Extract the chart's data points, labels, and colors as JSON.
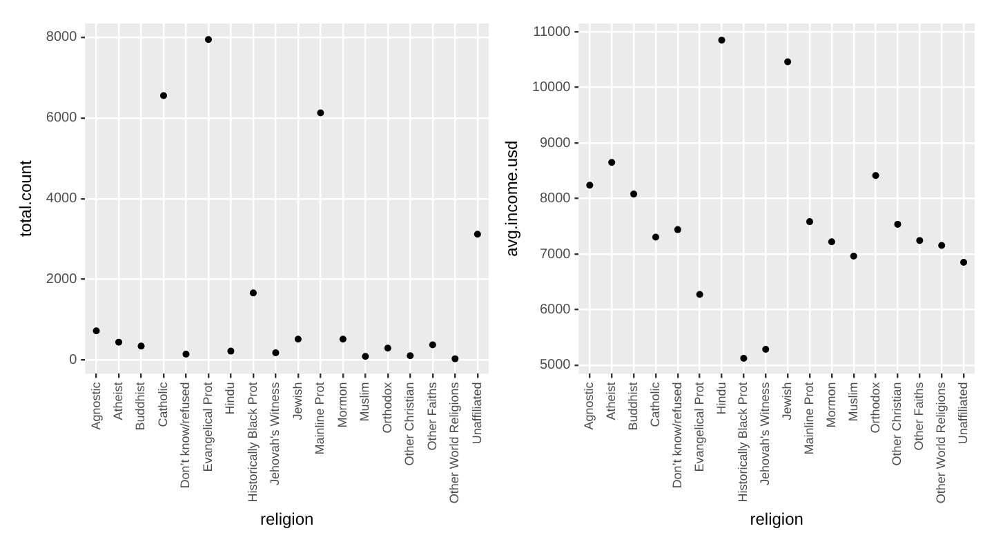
{
  "chart_data": [
    {
      "type": "scatter",
      "xlabel": "religion",
      "ylabel": "total.count",
      "categories": [
        "Agnostic",
        "Atheist",
        "Buddhist",
        "Catholic",
        "Don’t know/refused",
        "Evangelical Prot",
        "Hindu",
        "Historically Black Prot",
        "Jehovah's Witness",
        "Jewish",
        "Mainline Prot",
        "Mormon",
        "Muslim",
        "Orthodox",
        "Other Christian",
        "Other Faiths",
        "Other World Religions",
        "Unaffiliated"
      ],
      "series": [
        {
          "color": "#000000",
          "values": [
            724,
            444,
            346,
            6554,
            148,
            7942,
            222,
            1663,
            181,
            519,
            6124,
            519,
            91,
            296,
            107,
            379,
            33,
            3119
          ]
        }
      ],
      "ylim": [
        -340,
        8340
      ],
      "yticks": [
        0,
        2000,
        4000,
        6000,
        8000
      ],
      "grid": true,
      "marker": "circle"
    },
    {
      "type": "scatter",
      "xlabel": "religion",
      "ylabel": "avg.income.usd",
      "categories": [
        "Agnostic",
        "Atheist",
        "Buddhist",
        "Catholic",
        "Don’t know/refused",
        "Evangelical Prot",
        "Hindu",
        "Historically Black Prot",
        "Jehovah's Witness",
        "Jewish",
        "Mainline Prot",
        "Mormon",
        "Muslim",
        "Orthodox",
        "Other Christian",
        "Other Faiths",
        "Other World Religions",
        "Unaffiliated"
      ],
      "series": [
        {
          "color": "#000000",
          "values": [
            8240,
            8650,
            8080,
            7304,
            7440,
            6274,
            10850,
            5125,
            5286,
            10461,
            7583,
            7220,
            6964,
            8413,
            7536,
            7244,
            7155,
            6851
          ]
        }
      ],
      "ylim": [
        4845,
        11150
      ],
      "yticks": [
        5000,
        6000,
        7000,
        8000,
        9000,
        10000,
        11000
      ],
      "grid": true,
      "marker": "circle"
    }
  ]
}
